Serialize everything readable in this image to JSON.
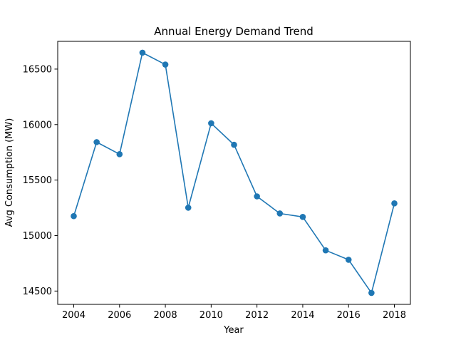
{
  "chart_data": {
    "type": "line",
    "title": "Annual Energy Demand Trend",
    "xlabel": "Year",
    "ylabel": "Avg Consumption (MW)",
    "x": [
      2004,
      2005,
      2006,
      2007,
      2008,
      2009,
      2010,
      2011,
      2012,
      2013,
      2014,
      2015,
      2016,
      2017,
      2018
    ],
    "series": [
      {
        "values": [
          15175,
          15842,
          15733,
          16648,
          16541,
          15251,
          16012,
          15818,
          15353,
          15199,
          15168,
          14867,
          14782,
          14483,
          15290
        ],
        "color": "#1f77b4",
        "marker": "circle"
      }
    ],
    "xlim": [
      2003.3,
      2018.7
    ],
    "ylim": [
      14380,
      16750
    ],
    "xticks": [
      "2004",
      "2006",
      "2008",
      "2010",
      "2012",
      "2014",
      "2016",
      "2018"
    ],
    "yticks": [
      "14500",
      "15000",
      "15500",
      "16000",
      "16500"
    ],
    "grid": false,
    "legend": "none"
  }
}
